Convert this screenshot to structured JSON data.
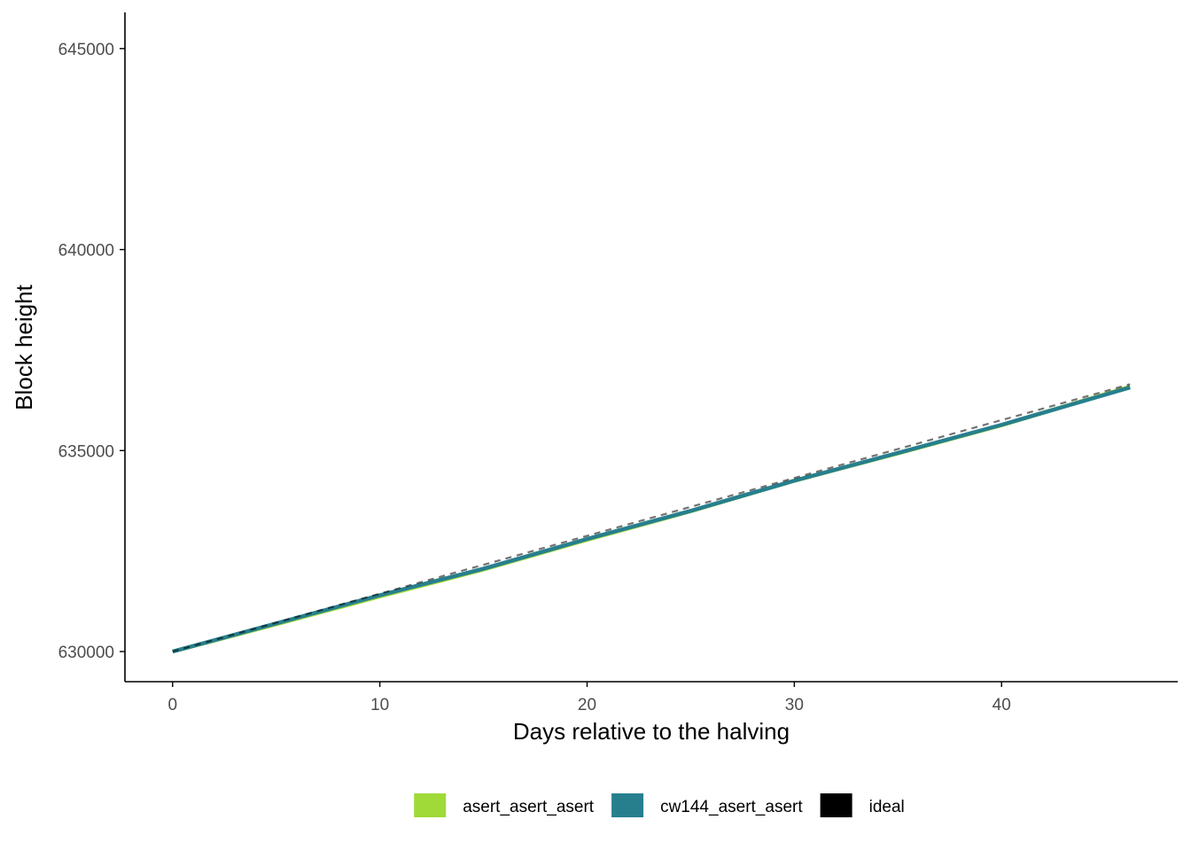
{
  "chart_data": {
    "type": "line",
    "title": "",
    "xlabel": "Days relative to the halving",
    "ylabel": "Block height",
    "xlim": [
      -2.3,
      48.5
    ],
    "ylim": [
      629250,
      645900
    ],
    "x_ticks": [
      0,
      10,
      20,
      30,
      40
    ],
    "y_ticks": [
      630000,
      635000,
      640000,
      645000
    ],
    "grid": false,
    "legend_position": "bottom",
    "series": [
      {
        "name": "asert_asert_asert",
        "color": "#a0da39",
        "style": "solid",
        "x": [
          0,
          5,
          10,
          15,
          20,
          25,
          30,
          35,
          40,
          46.2
        ],
        "y": [
          630000,
          630680,
          631370,
          632040,
          632780,
          633490,
          634250,
          634930,
          635630,
          636590
        ]
      },
      {
        "name": "cw144_asert_asert",
        "color": "#277f8e",
        "style": "solid",
        "x": [
          0,
          5,
          10,
          15,
          20,
          25,
          30,
          35,
          40,
          46.2
        ],
        "y": [
          630000,
          630700,
          631400,
          632060,
          632800,
          633500,
          634250,
          634940,
          635640,
          636570
        ]
      },
      {
        "name": "ideal",
        "color": "#000000",
        "style": "dashed",
        "x": [
          0,
          46.2
        ],
        "y": [
          630000,
          636650
        ]
      }
    ]
  }
}
